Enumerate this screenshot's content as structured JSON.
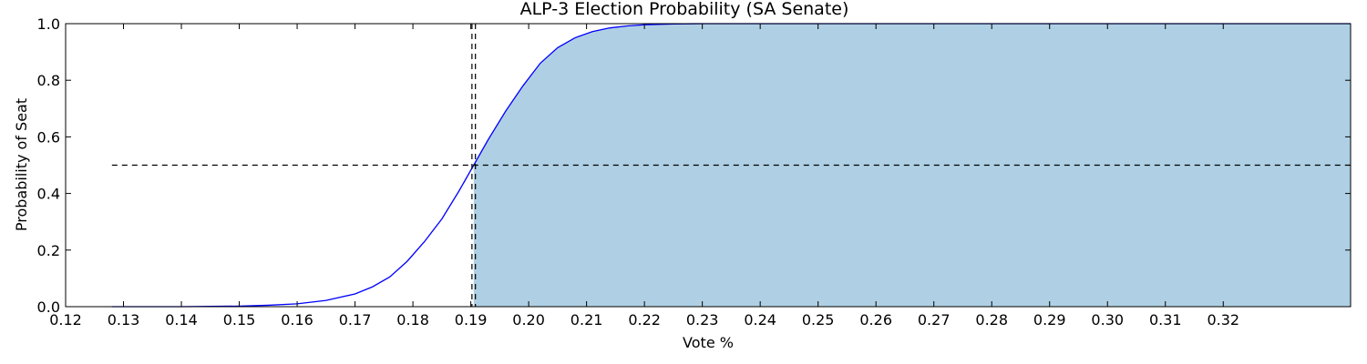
{
  "chart_data": {
    "type": "line",
    "title": "ALP-3 Election Probability (SA Senate)",
    "xlabel": "Vote %",
    "ylabel": "Probability of Seat",
    "xlim": [
      0.12,
      0.342
    ],
    "ylim": [
      0.0,
      1.0
    ],
    "x_ticks": [
      "0.12",
      "0.13",
      "0.14",
      "0.15",
      "0.16",
      "0.17",
      "0.18",
      "0.19",
      "0.20",
      "0.21",
      "0.22",
      "0.23",
      "0.24",
      "0.25",
      "0.26",
      "0.27",
      "0.28",
      "0.29",
      "0.30",
      "0.31",
      "0.32"
    ],
    "y_ticks": [
      "0.0",
      "0.2",
      "0.4",
      "0.6",
      "0.8",
      "1.0"
    ],
    "grid": false,
    "series": [
      {
        "color": "#0000ff",
        "x": [
          0.128,
          0.13,
          0.135,
          0.14,
          0.145,
          0.15,
          0.155,
          0.16,
          0.165,
          0.17,
          0.173,
          0.176,
          0.179,
          0.182,
          0.185,
          0.188,
          0.1905,
          0.193,
          0.196,
          0.199,
          0.202,
          0.205,
          0.208,
          0.211,
          0.214,
          0.217,
          0.22,
          0.225,
          0.23,
          0.342
        ],
        "y": [
          0.0,
          0.0,
          0.0,
          0.0,
          0.001,
          0.002,
          0.005,
          0.01,
          0.022,
          0.045,
          0.07,
          0.105,
          0.16,
          0.23,
          0.31,
          0.41,
          0.5,
          0.59,
          0.69,
          0.78,
          0.86,
          0.915,
          0.95,
          0.972,
          0.985,
          0.992,
          0.996,
          0.999,
          1.0,
          1.0
        ]
      }
    ],
    "shaded_region": {
      "x_from": 0.1905,
      "x_to": 0.342,
      "y_to": 1.0,
      "color": "#afd0e4"
    },
    "reference_lines": {
      "horizontal_y": 0.5,
      "horizontal_x_from": 0.128,
      "vertical_x": [
        0.1902,
        0.1908
      ],
      "style": "dashed",
      "color": "#000000"
    }
  }
}
